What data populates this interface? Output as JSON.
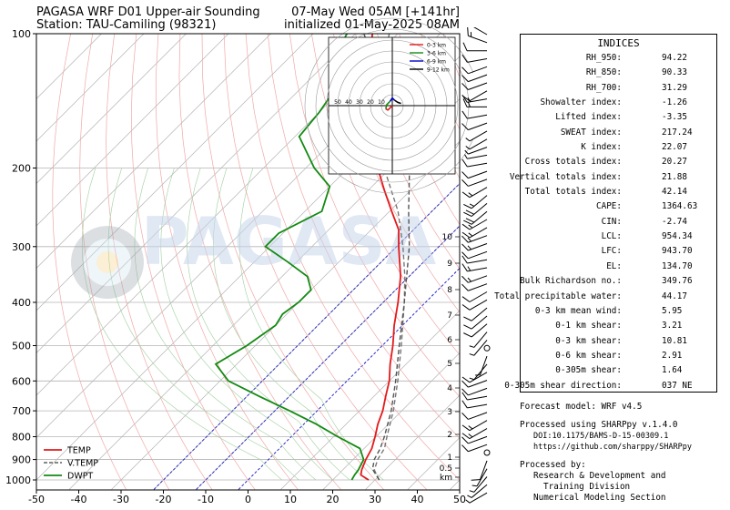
{
  "header": {
    "title_left_1": "PAGASA WRF D01 Upper-air Sounding",
    "title_left_2": "Station: TAU-Camiling (98321)",
    "title_right_1": "07-May Wed 05AM [+141hr]",
    "title_right_2": "initialized 01-May-2025 08AM"
  },
  "watermark": "PAGASA",
  "chart_data": {
    "type": "line",
    "subtype": "skew-T log-P sounding",
    "xlabel": "",
    "ylabel": "",
    "xlim": [
      -50,
      50
    ],
    "ylim": [
      1000,
      100
    ],
    "x_ticks": [
      -50,
      -40,
      -30,
      -20,
      -10,
      0,
      10,
      20,
      30,
      40,
      50
    ],
    "p_ticks": [
      1000,
      900,
      800,
      700,
      600,
      500,
      400,
      300,
      200,
      100
    ],
    "series": [
      {
        "name": "TEMP",
        "color": "#e31a1c",
        "points": [
          [
            1000,
            28.5
          ],
          [
            975,
            25.5
          ],
          [
            950,
            24.5
          ],
          [
            900,
            23.0
          ],
          [
            850,
            21.8
          ],
          [
            800,
            19.8
          ],
          [
            750,
            17.5
          ],
          [
            700,
            15.5
          ],
          [
            650,
            12.8
          ],
          [
            600,
            10.0
          ],
          [
            550,
            6.2
          ],
          [
            500,
            2.5
          ],
          [
            450,
            -2.0
          ],
          [
            400,
            -6.5
          ],
          [
            350,
            -12.0
          ],
          [
            300,
            -19.5
          ],
          [
            275,
            -23.5
          ],
          [
            250,
            -29.5
          ],
          [
            225,
            -36.0
          ],
          [
            200,
            -43.0
          ],
          [
            175,
            -49.5
          ],
          [
            150,
            -58.0
          ],
          [
            125,
            -66.0
          ],
          [
            110,
            -72.0
          ],
          [
            100,
            -76.0
          ]
        ]
      },
      {
        "name": "V.TEMP",
        "color": "#777777",
        "points": [
          [
            1000,
            31.0
          ],
          [
            950,
            27.5
          ],
          [
            900,
            25.8
          ],
          [
            850,
            24.8
          ],
          [
            800,
            22.6
          ],
          [
            700,
            18.0
          ],
          [
            600,
            12.0
          ],
          [
            500,
            4.5
          ],
          [
            400,
            -5.0
          ],
          [
            350,
            -11.0
          ],
          [
            300,
            -18.5
          ],
          [
            250,
            -28.0
          ],
          [
            200,
            -41.5
          ],
          [
            150,
            -56.0
          ],
          [
            125,
            -64.0
          ],
          [
            100,
            -72.0
          ]
        ]
      },
      {
        "name": "DWPT",
        "color": "#138a13",
        "points": [
          [
            1000,
            24.5
          ],
          [
            975,
            24.0
          ],
          [
            950,
            23.7
          ],
          [
            900,
            22.5
          ],
          [
            850,
            19.0
          ],
          [
            800,
            11.0
          ],
          [
            750,
            3.0
          ],
          [
            700,
            -6.5
          ],
          [
            650,
            -17.0
          ],
          [
            600,
            -28.0
          ],
          [
            550,
            -35.0
          ],
          [
            500,
            -32.0
          ],
          [
            450,
            -30.0
          ],
          [
            425,
            -31.0
          ],
          [
            400,
            -30.0
          ],
          [
            375,
            -30.0
          ],
          [
            350,
            -34.0
          ],
          [
            325,
            -42.0
          ],
          [
            300,
            -51.0
          ],
          [
            280,
            -51.0
          ],
          [
            250,
            -46.0
          ],
          [
            220,
            -50.0
          ],
          [
            200,
            -58.0
          ],
          [
            170,
            -69.0
          ],
          [
            150,
            -70.0
          ],
          [
            130,
            -72.0
          ],
          [
            120,
            -76.0
          ],
          [
            110,
            -80.0
          ],
          [
            100,
            -82.0
          ]
        ]
      },
      {
        "name": "Parcel",
        "color": "#555555",
        "style": "dashed",
        "points": [
          [
            1000,
            31.0
          ],
          [
            954,
            27.5
          ],
          [
            944,
            26.8
          ],
          [
            900,
            25.0
          ],
          [
            850,
            23.8
          ],
          [
            800,
            22.0
          ],
          [
            700,
            17.5
          ],
          [
            600,
            11.5
          ],
          [
            500,
            4.0
          ],
          [
            400,
            -5.0
          ],
          [
            300,
            -17.0
          ],
          [
            250,
            -25.5
          ],
          [
            200,
            -35.5
          ],
          [
            175,
            -42.0
          ],
          [
            150,
            -50.0
          ],
          [
            135,
            -57.0
          ],
          [
            120,
            -66.0
          ],
          [
            110,
            -72.0
          ],
          [
            100,
            -78.0
          ]
        ]
      }
    ],
    "legend": [
      "TEMP",
      "V.TEMP",
      "DWPT"
    ],
    "legend_position": "lower-left",
    "height_labels_km": [
      "10",
      "9",
      "8",
      "7",
      "6",
      "5",
      "4",
      "3",
      "2",
      "1",
      "0.5",
      "km"
    ],
    "height_label_pressures": [
      268,
      225,
      192,
      164,
      139,
      117,
      99,
      83,
      68,
      52,
      44,
      36
    ],
    "hodograph": {
      "legend": [
        "0-3 km",
        "3-6 km",
        "6-9 km",
        "9-12 km"
      ],
      "legend_colors": [
        "#e31a1c",
        "#138a13",
        "#0000cc",
        "#000000"
      ],
      "ring_labels": [
        "50",
        "40",
        "30",
        "20",
        "10"
      ],
      "segments": [
        {
          "color": "#e31a1c",
          "points": [
            [
              0,
              0
            ],
            [
              -2,
              2
            ],
            [
              -4,
              4
            ],
            [
              -6,
              3
            ]
          ]
        },
        {
          "color": "#138a13",
          "points": [
            [
              -6,
              3
            ],
            [
              -5,
              -1
            ],
            [
              -2,
              -4
            ]
          ]
        },
        {
          "color": "#0000cc",
          "points": [
            [
              -2,
              -4
            ],
            [
              0,
              -7
            ],
            [
              2,
              -5
            ]
          ]
        },
        {
          "color": "#000000",
          "points": [
            [
              2,
              -5
            ],
            [
              5,
              -3
            ],
            [
              8,
              -2
            ]
          ]
        }
      ]
    },
    "wind_barbs_speed_kt": [
      15,
      15,
      10,
      10,
      10,
      10,
      10,
      10,
      15,
      15,
      10,
      10,
      5,
      5,
      5,
      5,
      10,
      10,
      10,
      15,
      15,
      20,
      20,
      15,
      15,
      15,
      15,
      10,
      10,
      15,
      15,
      10,
      10,
      10,
      10,
      10,
      10,
      5,
      5,
      0,
      5,
      5,
      10,
      10,
      10,
      10,
      10,
      10,
      15,
      15,
      10,
      10,
      0,
      10,
      5,
      5,
      5,
      5
    ],
    "wind_barbs_dir_deg": [
      300,
      290,
      270,
      260,
      250,
      250,
      250,
      240,
      260,
      270,
      260,
      250,
      240,
      240,
      250,
      260,
      260,
      250,
      250,
      240,
      230,
      230,
      230,
      240,
      240,
      250,
      250,
      250,
      260,
      260,
      250,
      250,
      240,
      240,
      230,
      230,
      230,
      220,
      220,
      0,
      200,
      220,
      240,
      250,
      250,
      260,
      260,
      250,
      240,
      240,
      250,
      250,
      0,
      200,
      210,
      220,
      230,
      240
    ]
  },
  "indices": {
    "title": "INDICES",
    "rows": [
      {
        "label": "RH_950:",
        "value": "94.22"
      },
      {
        "label": "RH_850:",
        "value": "90.33"
      },
      {
        "label": "RH_700:",
        "value": "31.29"
      },
      {
        "label": "Showalter index:",
        "value": "-1.26"
      },
      {
        "label": "Lifted index:",
        "value": "-3.35"
      },
      {
        "label": "SWEAT index:",
        "value": "217.24"
      },
      {
        "label": "K index:",
        "value": "22.07"
      },
      {
        "label": "Cross totals index:",
        "value": "20.27"
      },
      {
        "label": "Vertical totals index:",
        "value": "21.88"
      },
      {
        "label": "Total totals index:",
        "value": "42.14"
      },
      {
        "label": "CAPE:",
        "value": "1364.63"
      },
      {
        "label": "CIN:",
        "value": "-2.74"
      },
      {
        "label": "LCL:",
        "value": "954.34"
      },
      {
        "label": "LFC:",
        "value": "943.70"
      },
      {
        "label": "EL:",
        "value": "134.70"
      },
      {
        "label": "Bulk Richardson no.:",
        "value": "349.76"
      },
      {
        "label": "Total precipitable water:",
        "value": "44.17"
      },
      {
        "label": "0-3 km mean wind:",
        "value": "5.95"
      },
      {
        "label": "0-1 km shear:",
        "value": "3.21"
      },
      {
        "label": "0-3 km shear:",
        "value": "10.81"
      },
      {
        "label": "0-6 km shear:",
        "value": "2.91"
      },
      {
        "label": "0-305m shear:",
        "value": "1.64"
      },
      {
        "label": "0-305m shear direction:",
        "value": "037 NE"
      }
    ]
  },
  "footer": {
    "forecast_model": "Forecast model: WRF v4.5",
    "processed_using": "Processed using SHARPpy v.1.4.0",
    "doi": "DOI:10.1175/BAMS-D-15-00309.1",
    "url": "https://github.com/sharppy/SHARPpy",
    "processed_by": "Processed by:",
    "org_line_1": "Research & Development and",
    "org_line_2": "Training Division",
    "org_line_3": "Numerical Modeling Section"
  }
}
